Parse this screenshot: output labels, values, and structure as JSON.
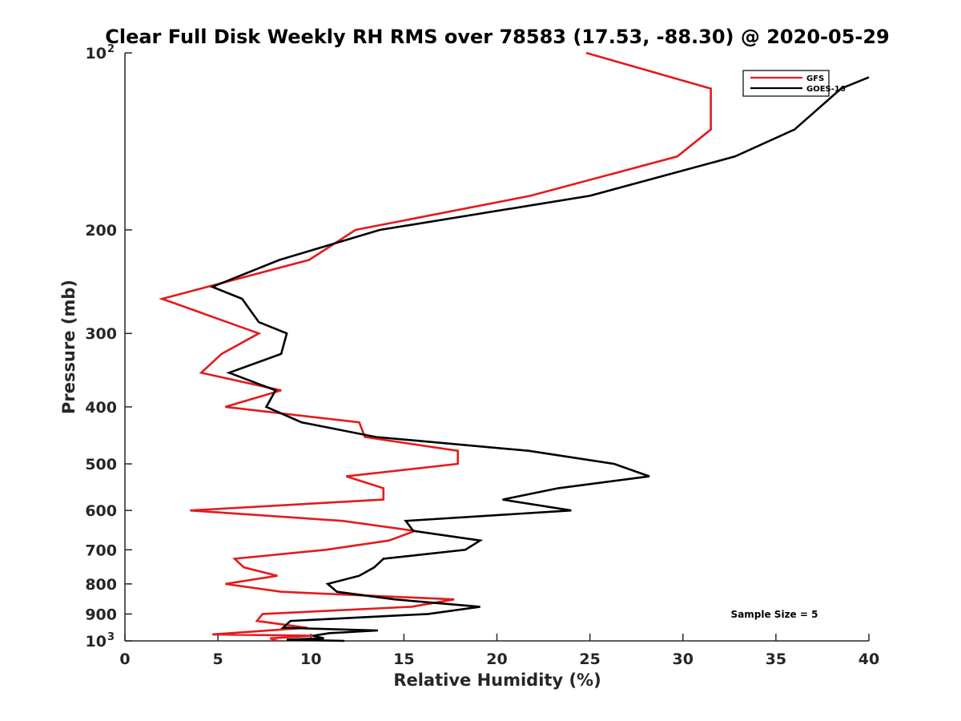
{
  "chart_data": {
    "type": "line",
    "title": "Clear Full Disk Weekly RH RMS over 78583 (17.53, -88.30) @ 2020-05-29",
    "xlabel": "Relative Humidity (%)",
    "ylabel": "Pressure (mb)",
    "xlim": [
      0,
      40
    ],
    "ylim": [
      100,
      1000
    ],
    "y_scale": "log",
    "y_reversed": true,
    "grid": false,
    "legend_position": "top-right",
    "x_ticks": [
      "0",
      "5",
      "10",
      "15",
      "20",
      "25",
      "30",
      "35",
      "40"
    ],
    "y_ticks": [
      {
        "value": 100,
        "base": "10",
        "exp": "2"
      },
      {
        "value": 200,
        "label": "200"
      },
      {
        "value": 300,
        "label": "300"
      },
      {
        "value": 400,
        "label": "400"
      },
      {
        "value": 500,
        "label": "500"
      },
      {
        "value": 600,
        "label": "600"
      },
      {
        "value": 700,
        "label": "700"
      },
      {
        "value": 800,
        "label": "800"
      },
      {
        "value": 900,
        "label": "900"
      },
      {
        "value": 1000,
        "base": "10",
        "exp": "3"
      }
    ],
    "annotation": "Sample Size = 5",
    "series": [
      {
        "name": "GFS",
        "color": "#e41a1c",
        "points": [
          [
            24.8,
            100
          ],
          [
            31.5,
            115
          ],
          [
            31.5,
            135
          ],
          [
            29.7,
            150
          ],
          [
            21.8,
            175
          ],
          [
            12.4,
            200
          ],
          [
            9.9,
            225
          ],
          [
            2.0,
            262
          ],
          [
            7.2,
            300
          ],
          [
            5.2,
            325
          ],
          [
            4.1,
            350
          ],
          [
            8.4,
            375
          ],
          [
            5.4,
            400
          ],
          [
            12.6,
            425
          ],
          [
            12.9,
            450
          ],
          [
            17.9,
            475
          ],
          [
            17.9,
            500
          ],
          [
            11.9,
            525
          ],
          [
            13.9,
            550
          ],
          [
            13.9,
            575
          ],
          [
            3.5,
            600
          ],
          [
            11.7,
            625
          ],
          [
            15.6,
            650
          ],
          [
            14.2,
            675
          ],
          [
            10.8,
            700
          ],
          [
            5.9,
            725
          ],
          [
            6.4,
            750
          ],
          [
            8.2,
            775
          ],
          [
            5.4,
            800
          ],
          [
            8.4,
            825
          ],
          [
            17.7,
            850
          ],
          [
            15.4,
            875
          ],
          [
            7.4,
            900
          ],
          [
            7.1,
            925
          ],
          [
            9.8,
            950
          ],
          [
            4.7,
            975
          ],
          [
            10.1,
            980
          ],
          [
            7.8,
            990
          ],
          [
            8.2,
            1000
          ]
        ]
      },
      {
        "name": "GOES-16",
        "color": "#000000",
        "points": [
          [
            40.0,
            110
          ],
          [
            38.5,
            115
          ],
          [
            36.0,
            135
          ],
          [
            32.8,
            150
          ],
          [
            25.0,
            175
          ],
          [
            13.7,
            200
          ],
          [
            8.3,
            225
          ],
          [
            4.7,
            250
          ],
          [
            6.3,
            262
          ],
          [
            7.2,
            287
          ],
          [
            8.7,
            300
          ],
          [
            8.4,
            325
          ],
          [
            5.6,
            350
          ],
          [
            8.1,
            375
          ],
          [
            7.6,
            400
          ],
          [
            9.5,
            425
          ],
          [
            13.5,
            450
          ],
          [
            21.7,
            475
          ],
          [
            26.3,
            500
          ],
          [
            28.2,
            525
          ],
          [
            23.3,
            550
          ],
          [
            20.3,
            575
          ],
          [
            24.0,
            600
          ],
          [
            15.1,
            625
          ],
          [
            15.5,
            650
          ],
          [
            19.1,
            675
          ],
          [
            18.3,
            700
          ],
          [
            13.9,
            725
          ],
          [
            13.4,
            750
          ],
          [
            12.6,
            775
          ],
          [
            10.9,
            800
          ],
          [
            11.4,
            825
          ],
          [
            14.5,
            850
          ],
          [
            19.1,
            875
          ],
          [
            16.3,
            900
          ],
          [
            8.9,
            925
          ],
          [
            8.5,
            950
          ],
          [
            13.6,
            960
          ],
          [
            11.0,
            970
          ],
          [
            10.1,
            980
          ],
          [
            10.7,
            990
          ],
          [
            8.7,
            995
          ],
          [
            11.8,
            1000
          ]
        ]
      }
    ]
  }
}
